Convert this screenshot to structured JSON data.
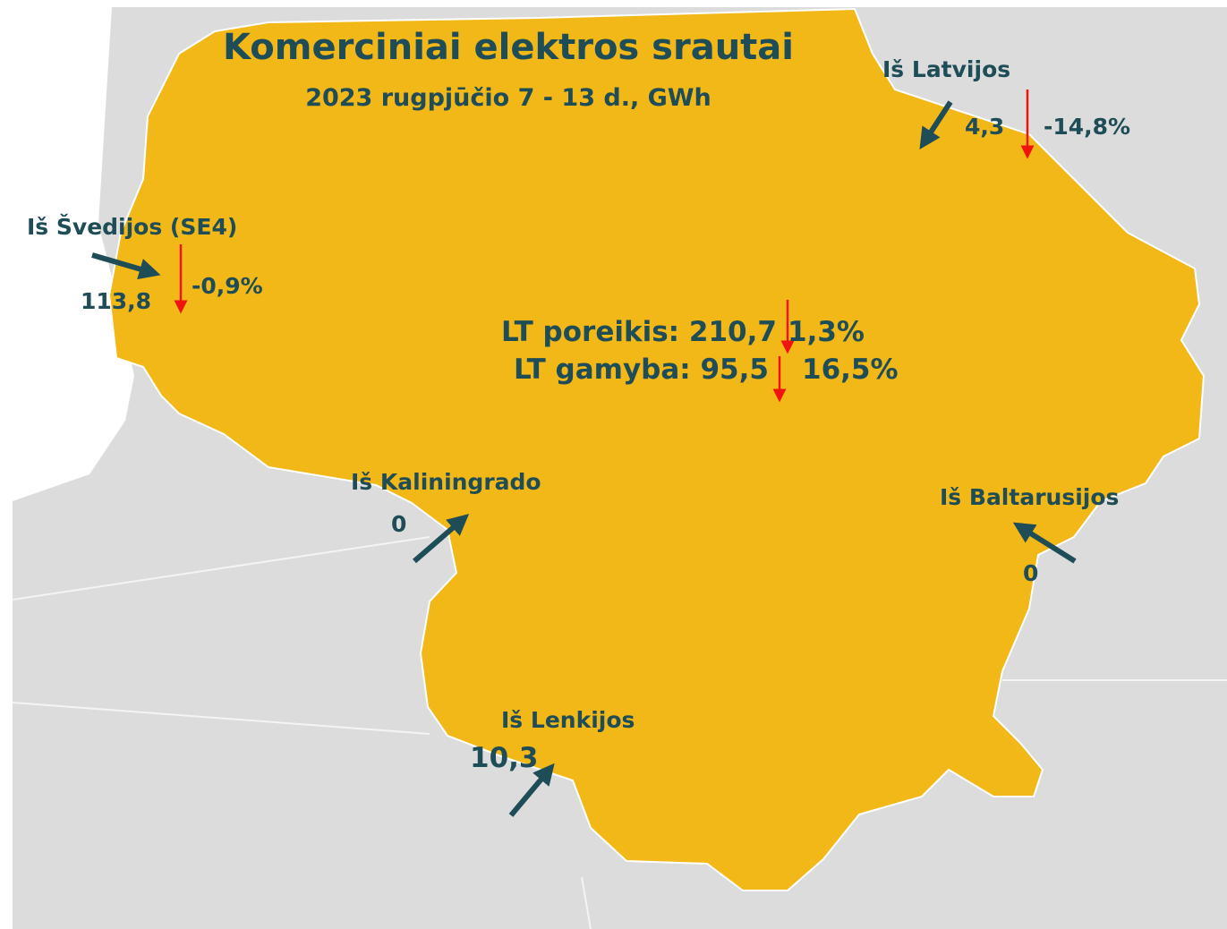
{
  "title": "Komerciniai elektros srautai",
  "subtitle": "2023 rugpjūčio 7  - 13 d., GWh",
  "flows": {
    "latvia": {
      "label": "Iš Latvijos",
      "value": "4,3",
      "change": "-14,8%"
    },
    "sweden": {
      "label": "Iš Švedijos (SE4)",
      "value": "113,8",
      "change": "-0,9%"
    },
    "kaliningrad": {
      "label": "Iš Kaliningrado",
      "value": "0"
    },
    "belarus": {
      "label": "Iš Baltarusijos",
      "value": "0"
    },
    "poland": {
      "label": "Iš Lenkijos",
      "value": "10,3"
    }
  },
  "lt": {
    "demand": {
      "label": "LT poreikis: 210,7",
      "change": "1,3%"
    },
    "generation": {
      "label": "LT gamyba: 95,5",
      "change": "16,5%"
    }
  }
}
